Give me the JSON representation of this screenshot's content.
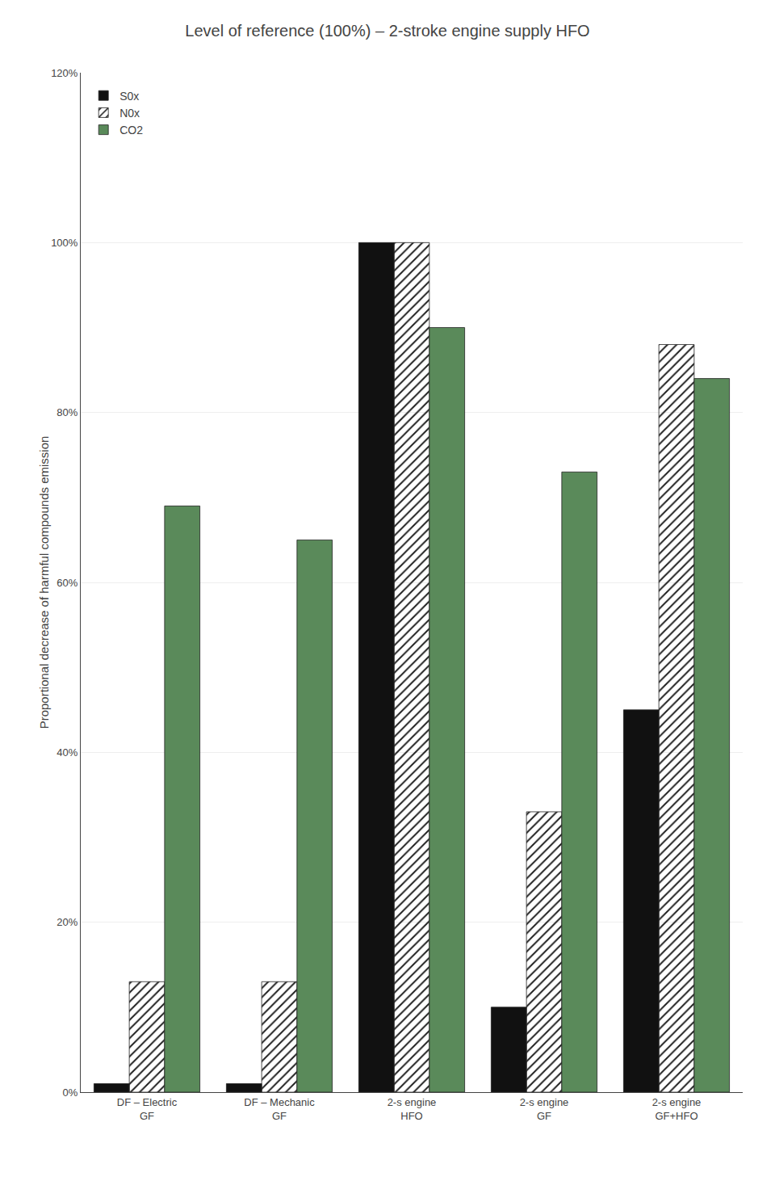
{
  "chart_data": {
    "type": "bar",
    "title": "Level of reference (100%) – 2-stroke engine supply HFO",
    "y_label": "Proportional decrease of harmful compounds emission",
    "categories": [
      "DF – Electric\nGF",
      "DF – Mechanic\nGF",
      "2-s engine\nHFO",
      "2-s engine\nGF",
      "2-s engine\nGF+HFO"
    ],
    "series": [
      {
        "name": "S0x",
        "color": "#111111",
        "values": [
          1,
          1,
          100,
          10,
          45
        ]
      },
      {
        "name": "N0x",
        "color": "#e8e8e8",
        "values": [
          13,
          13,
          100,
          33,
          88
        ]
      },
      {
        "name": "CO2",
        "color": "#5a8a5a",
        "values": [
          69,
          65,
          90,
          73,
          84
        ]
      }
    ],
    "ylim": [
      0,
      120
    ],
    "yticks": [
      {
        "value": 0,
        "label": "0%"
      },
      {
        "value": 20,
        "label": "20%"
      },
      {
        "value": 40,
        "label": "40%"
      },
      {
        "value": 60,
        "label": "60%"
      },
      {
        "value": 80,
        "label": "80%"
      },
      {
        "value": 100,
        "label": "100%"
      },
      {
        "value": 120,
        "label": "120%"
      }
    ],
    "grid": true,
    "legend": "upper left"
  }
}
